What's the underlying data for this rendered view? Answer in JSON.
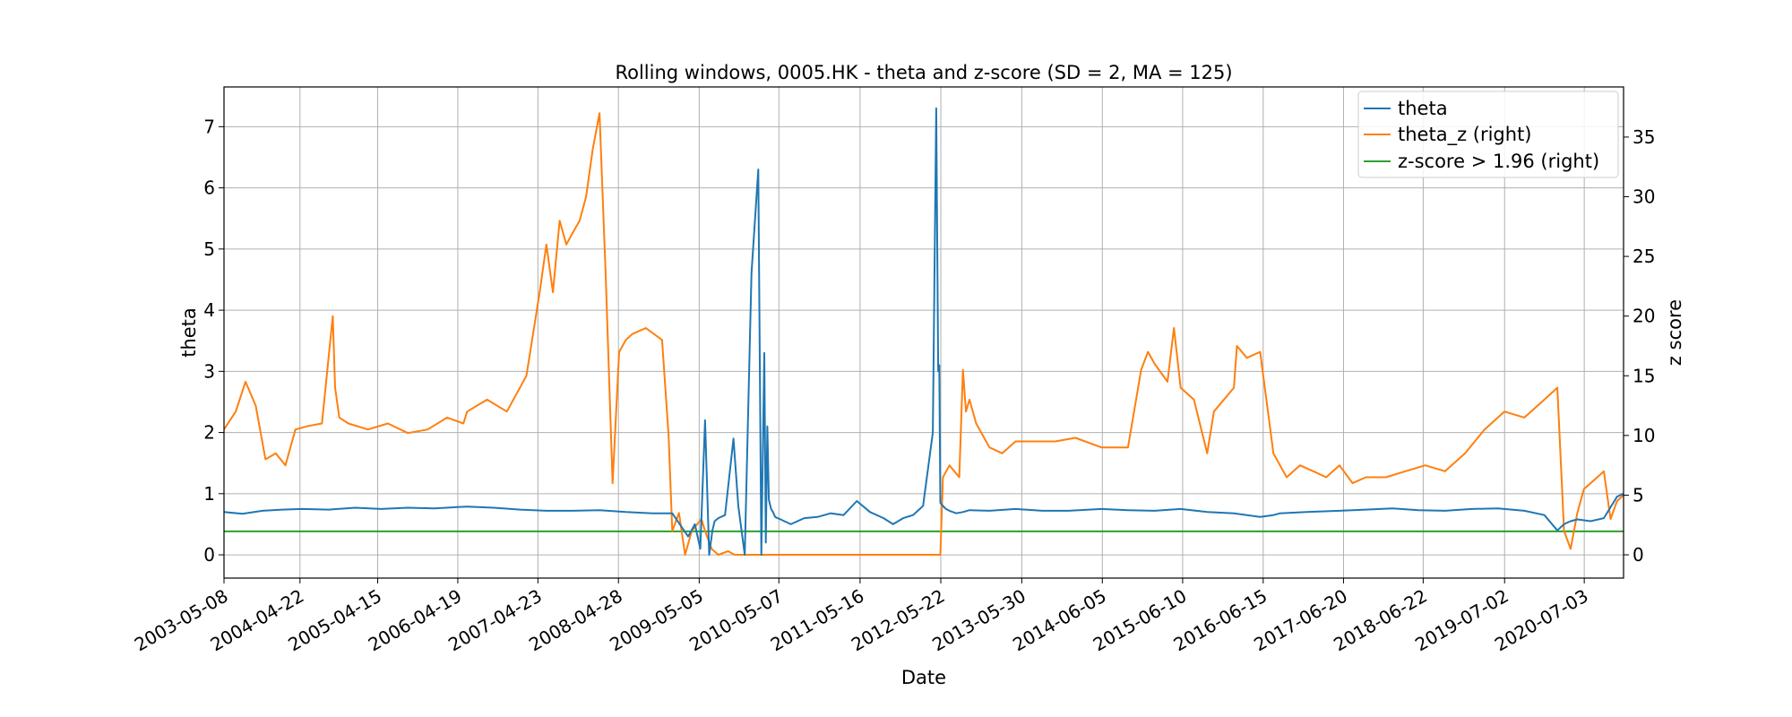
{
  "chart_data": {
    "type": "line",
    "title": "Rolling windows, 0005.HK - theta and z-score (SD = 2, MA = 125)",
    "xlabel": "Date",
    "ylabel": "theta",
    "ylabel_right": "z score",
    "x_ticks": [
      "2003-05-08",
      "2004-04-22",
      "2005-04-15",
      "2006-04-19",
      "2007-04-23",
      "2008-04-28",
      "2009-05-05",
      "2010-05-07",
      "2011-05-16",
      "2012-05-22",
      "2013-05-30",
      "2014-06-05",
      "2015-06-10",
      "2016-06-15",
      "2017-06-20",
      "2018-06-22",
      "2019-07-02",
      "2020-07-03"
    ],
    "x_range": [
      "2003-05-08",
      "2020-12-31"
    ],
    "y_left_range": [
      -0.38,
      7.65
    ],
    "y_left_ticks": [
      0,
      1,
      2,
      3,
      4,
      5,
      6,
      7
    ],
    "y_right_range": [
      -1.95,
      39.2
    ],
    "y_right_ticks": [
      0,
      5,
      10,
      15,
      20,
      25,
      30,
      35
    ],
    "grid": true,
    "legend_position": "top-right",
    "colors": {
      "theta": "#1f77b4",
      "theta_z": "#ff7f0e",
      "threshold": "#2ca02c"
    },
    "series": [
      {
        "name": "theta",
        "axis": "left",
        "x": [
          "2003-05-08",
          "2003-08-01",
          "2003-11-01",
          "2004-02-01",
          "2004-05-01",
          "2004-09-01",
          "2005-01-01",
          "2005-05-01",
          "2005-09-01",
          "2006-01-01",
          "2006-06-01",
          "2006-10-01",
          "2007-02-01",
          "2007-06-01",
          "2007-10-01",
          "2008-02-01",
          "2008-06-01",
          "2008-10-01",
          "2009-01-01",
          "2009-03-15",
          "2009-04-15",
          "2009-05-10",
          "2009-06-01",
          "2009-06-20",
          "2009-07-05",
          "2009-07-15",
          "2009-08-01",
          "2009-09-01",
          "2009-10-10",
          "2009-11-01",
          "2009-12-01",
          "2010-01-01",
          "2010-02-01",
          "2010-02-15",
          "2010-03-01",
          "2010-03-08",
          "2010-03-15",
          "2010-03-22",
          "2010-04-01",
          "2010-04-10",
          "2010-04-20",
          "2010-05-01",
          "2010-05-15",
          "2010-06-01",
          "2010-07-01",
          "2010-09-01",
          "2010-11-01",
          "2011-01-01",
          "2011-03-01",
          "2011-05-01",
          "2011-07-01",
          "2011-09-01",
          "2011-10-15",
          "2011-12-01",
          "2012-01-15",
          "2012-03-01",
          "2012-04-15",
          "2012-05-01",
          "2012-05-10",
          "2012-05-15",
          "2012-05-20",
          "2012-06-01",
          "2012-06-15",
          "2012-07-01",
          "2012-08-01",
          "2012-09-01",
          "2012-10-01",
          "2013-01-01",
          "2013-05-01",
          "2013-09-01",
          "2014-01-01",
          "2014-06-01",
          "2014-10-01",
          "2015-02-01",
          "2015-06-01",
          "2015-10-01",
          "2016-02-01",
          "2016-06-01",
          "2016-08-01",
          "2016-09-01",
          "2017-01-01",
          "2017-06-01",
          "2017-10-01",
          "2018-02-01",
          "2018-06-01",
          "2018-10-01",
          "2019-02-01",
          "2019-06-01",
          "2019-10-01",
          "2020-01-01",
          "2020-03-01",
          "2020-04-01",
          "2020-05-01",
          "2020-06-01",
          "2020-08-01",
          "2020-10-01",
          "2020-12-01",
          "2020-12-31"
        ],
        "values": [
          0.7,
          0.67,
          0.72,
          0.74,
          0.75,
          0.74,
          0.77,
          0.75,
          0.77,
          0.76,
          0.79,
          0.77,
          0.74,
          0.72,
          0.72,
          0.73,
          0.7,
          0.68,
          0.68,
          0.3,
          0.5,
          0.1,
          2.2,
          0.0,
          0.4,
          0.55,
          0.6,
          0.65,
          1.9,
          0.8,
          0.0,
          4.6,
          6.3,
          0.0,
          3.3,
          0.2,
          2.1,
          0.9,
          0.75,
          0.7,
          0.62,
          0.6,
          0.58,
          0.55,
          0.5,
          0.6,
          0.62,
          0.68,
          0.65,
          0.88,
          0.7,
          0.6,
          0.5,
          0.6,
          0.65,
          0.8,
          2.0,
          7.3,
          3.0,
          3.1,
          0.85,
          0.8,
          0.75,
          0.72,
          0.68,
          0.7,
          0.73,
          0.72,
          0.75,
          0.72,
          0.72,
          0.75,
          0.73,
          0.72,
          0.75,
          0.7,
          0.68,
          0.62,
          0.65,
          0.68,
          0.7,
          0.72,
          0.74,
          0.76,
          0.73,
          0.72,
          0.75,
          0.76,
          0.72,
          0.65,
          0.4,
          0.5,
          0.55,
          0.58,
          0.55,
          0.6,
          0.95,
          1.0
        ]
      },
      {
        "name": "theta_z (right)",
        "axis": "right",
        "x": [
          "2003-05-08",
          "2003-07-01",
          "2003-08-15",
          "2003-10-01",
          "2003-11-15",
          "2004-01-01",
          "2004-02-15",
          "2004-04-01",
          "2004-06-01",
          "2004-08-01",
          "2004-09-20",
          "2004-10-01",
          "2004-10-20",
          "2004-12-01",
          "2005-03-01",
          "2005-06-01",
          "2005-09-01",
          "2005-12-01",
          "2006-03-01",
          "2006-05-15",
          "2006-06-01",
          "2006-09-01",
          "2006-12-01",
          "2007-03-01",
          "2007-05-01",
          "2007-06-01",
          "2007-07-01",
          "2007-08-01",
          "2007-09-01",
          "2007-10-01",
          "2007-11-01",
          "2007-12-01",
          "2008-01-01",
          "2008-02-01",
          "2008-03-01",
          "2008-04-01",
          "2008-05-01",
          "2008-06-01",
          "2008-07-01",
          "2008-09-01",
          "2008-11-15",
          "2008-12-15",
          "2009-01-01",
          "2009-02-01",
          "2009-03-01",
          "2009-04-01",
          "2009-05-15",
          "2009-06-01",
          "2009-07-01",
          "2009-08-01",
          "2009-09-15",
          "2009-10-15",
          "2009-11-01",
          "2009-12-01",
          "2010-01-01",
          "2010-02-01",
          "2010-03-01",
          "2010-04-01",
          "2010-05-01",
          "2010-06-01",
          "2010-07-01",
          "2010-08-01",
          "2010-09-01",
          "2010-11-01",
          "2011-02-01",
          "2011-06-01",
          "2011-10-01",
          "2012-02-01",
          "2012-05-01",
          "2012-05-20",
          "2012-06-01",
          "2012-07-01",
          "2012-08-15",
          "2012-09-01",
          "2012-09-15",
          "2012-10-01",
          "2012-11-01",
          "2013-01-01",
          "2013-03-01",
          "2013-05-01",
          "2013-08-01",
          "2013-11-01",
          "2014-02-01",
          "2014-06-01",
          "2014-10-01",
          "2014-12-01",
          "2015-01-01",
          "2015-02-01",
          "2015-04-01",
          "2015-05-01",
          "2015-06-01",
          "2015-08-01",
          "2015-10-01",
          "2015-11-01",
          "2016-02-01",
          "2016-02-15",
          "2016-04-01",
          "2016-06-01",
          "2016-08-01",
          "2016-10-01",
          "2016-12-01",
          "2017-02-01",
          "2017-04-01",
          "2017-06-01",
          "2017-08-01",
          "2017-10-01",
          "2018-01-01",
          "2018-04-01",
          "2018-07-01",
          "2018-10-01",
          "2019-01-01",
          "2019-04-01",
          "2019-07-01",
          "2019-10-01",
          "2020-01-01",
          "2020-03-01",
          "2020-04-01",
          "2020-05-01",
          "2020-06-01",
          "2020-07-01",
          "2020-08-01",
          "2020-09-01",
          "2020-10-01",
          "2020-11-01",
          "2020-12-01",
          "2020-12-31"
        ],
        "values": [
          10.5,
          12.0,
          14.5,
          12.5,
          8.0,
          8.5,
          7.5,
          10.5,
          10.8,
          11.0,
          20.0,
          14.0,
          11.5,
          11.0,
          10.5,
          11.0,
          10.2,
          10.5,
          11.5,
          11.0,
          12.0,
          13.0,
          12.0,
          15.0,
          22.0,
          26.0,
          22.0,
          28.0,
          26.0,
          27.0,
          28.0,
          30.0,
          34.0,
          37.0,
          23.0,
          6.0,
          17.0,
          18.0,
          18.5,
          19.0,
          18.0,
          10.0,
          2.0,
          3.5,
          0.0,
          2.0,
          3.0,
          2.0,
          0.5,
          0.0,
          0.3,
          0.0,
          0.0,
          0.0,
          0.0,
          0.0,
          0.0,
          0.0,
          0.0,
          0.0,
          0.0,
          0.0,
          0.0,
          0.0,
          0.0,
          0.0,
          0.0,
          0.0,
          0.0,
          0.0,
          6.5,
          7.5,
          6.5,
          15.5,
          12.0,
          13.0,
          11.0,
          9.0,
          8.5,
          9.5,
          9.5,
          9.5,
          9.8,
          9.0,
          9.0,
          15.5,
          17.0,
          16.0,
          14.5,
          19.0,
          14.0,
          13.0,
          8.5,
          12.0,
          14.0,
          17.5,
          16.5,
          17.0,
          8.5,
          6.5,
          7.5,
          7.0,
          6.5,
          7.5,
          6.0,
          6.5,
          6.5,
          7.0,
          7.5,
          7.0,
          8.5,
          10.5,
          12.0,
          11.5,
          13.0,
          14.0,
          2.0,
          0.5,
          3.5,
          5.5,
          6.0,
          6.5,
          7.0,
          3.0,
          4.5,
          5.0
        ]
      },
      {
        "name": "z-score > 1.96 (right)",
        "axis": "right",
        "x": [
          "2003-05-08",
          "2020-12-31"
        ],
        "values": [
          1.96,
          1.96
        ]
      }
    ]
  }
}
